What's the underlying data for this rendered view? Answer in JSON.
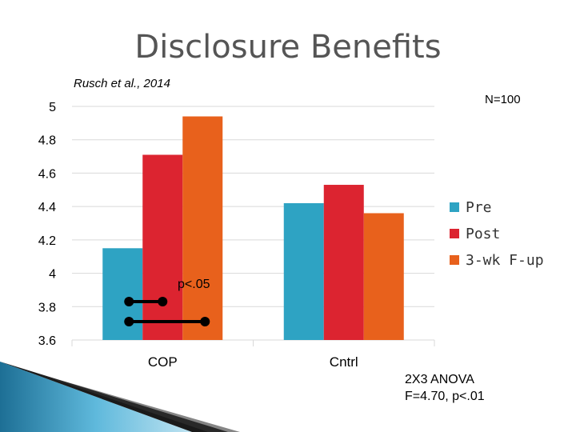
{
  "slide": {
    "title": "Disclosure Benefits",
    "citation": "Rusch et al., 2014",
    "n_label": "N=100",
    "stats_line1": "2X3 ANOVA",
    "stats_line2": "F=4.70, p<.01",
    "annotation": "p<.05"
  },
  "chart_data": {
    "type": "bar",
    "title": "Disclosure Benefits",
    "categories": [
      "COP",
      "Cntrl"
    ],
    "series": [
      {
        "name": "Pre",
        "values": [
          4.15,
          4.42
        ],
        "color": "#2ea3c3"
      },
      {
        "name": "Post",
        "values": [
          4.71,
          4.53
        ],
        "color": "#dc2430"
      },
      {
        "name": "3-wk F-up",
        "values": [
          4.94,
          4.36
        ],
        "color": "#e8611c"
      }
    ],
    "ylim": [
      3.6,
      5
    ],
    "yticks": [
      "3.6",
      "3.8",
      "4",
      "4.2",
      "4.4",
      "4.6",
      "4.8",
      "5"
    ],
    "grid": true,
    "legend_position": "right",
    "xlabel": "",
    "ylabel": ""
  }
}
